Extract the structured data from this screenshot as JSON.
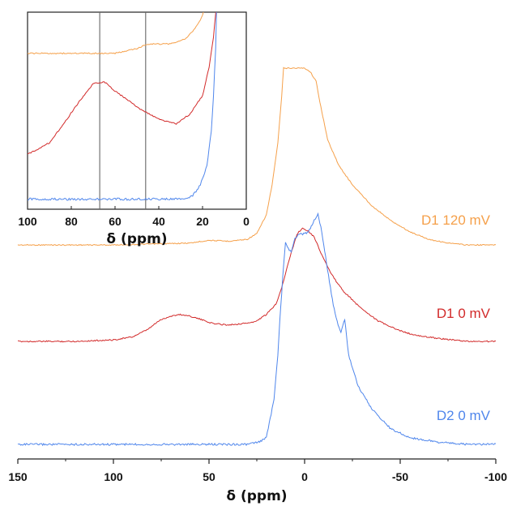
{
  "chart_data": [
    {
      "type": "line",
      "panel": "main",
      "xlabel": "δ (ppm)",
      "ylabel": "",
      "xlim": [
        150,
        -100
      ],
      "x_ticks": [
        150,
        100,
        50,
        0,
        -50,
        -100
      ],
      "x_tick_labels": [
        "150",
        "100",
        "50",
        "0",
        "-50",
        "-100"
      ],
      "y_ticks": [],
      "series": [
        {
          "name": "D1 120 mV",
          "color": "#f5a04a",
          "points": [
            [
              150,
              0.06
            ],
            [
              120,
              0.06
            ],
            [
              100,
              0.06
            ],
            [
              80,
              0.065
            ],
            [
              60,
              0.07
            ],
            [
              50,
              0.085
            ],
            [
              40,
              0.08
            ],
            [
              30,
              0.09
            ],
            [
              25,
              0.12
            ],
            [
              20,
              0.22
            ],
            [
              17,
              0.38
            ],
            [
              14,
              0.6
            ],
            [
              12,
              0.85
            ],
            [
              11,
              1.0
            ],
            [
              10,
              1.0
            ],
            [
              5,
              1.0
            ],
            [
              0,
              1.0
            ],
            [
              -3,
              0.98
            ],
            [
              -6,
              0.93
            ],
            [
              -8,
              0.82
            ],
            [
              -12,
              0.62
            ],
            [
              -18,
              0.48
            ],
            [
              -25,
              0.38
            ],
            [
              -35,
              0.27
            ],
            [
              -45,
              0.19
            ],
            [
              -55,
              0.13
            ],
            [
              -65,
              0.09
            ],
            [
              -75,
              0.07
            ],
            [
              -85,
              0.06
            ],
            [
              -100,
              0.06
            ]
          ]
        },
        {
          "name": "D1 0 mV",
          "color": "#d22a2a",
          "points": [
            [
              150,
              0.0
            ],
            [
              120,
              0.0
            ],
            [
              100,
              0.01
            ],
            [
              90,
              0.03
            ],
            [
              82,
              0.08
            ],
            [
              76,
              0.14
            ],
            [
              70,
              0.17
            ],
            [
              65,
              0.18
            ],
            [
              60,
              0.17
            ],
            [
              55,
              0.15
            ],
            [
              48,
              0.12
            ],
            [
              40,
              0.11
            ],
            [
              32,
              0.12
            ],
            [
              26,
              0.13
            ],
            [
              20,
              0.18
            ],
            [
              15,
              0.25
            ],
            [
              12,
              0.36
            ],
            [
              8,
              0.55
            ],
            [
              4,
              0.72
            ],
            [
              1,
              0.76
            ],
            [
              -2,
              0.74
            ],
            [
              -5,
              0.7
            ],
            [
              -9,
              0.58
            ],
            [
              -14,
              0.45
            ],
            [
              -20,
              0.34
            ],
            [
              -28,
              0.24
            ],
            [
              -38,
              0.14
            ],
            [
              -48,
              0.08
            ],
            [
              -58,
              0.04
            ],
            [
              -70,
              0.02
            ],
            [
              -85,
              0.0
            ],
            [
              -100,
              0.0
            ]
          ]
        },
        {
          "name": "D2 0 mV",
          "color": "#4f86ec",
          "points": [
            [
              150,
              0.0
            ],
            [
              120,
              0.0
            ],
            [
              100,
              0.0
            ],
            [
              80,
              0.0
            ],
            [
              60,
              0.0
            ],
            [
              40,
              0.0
            ],
            [
              30,
              0.0
            ],
            [
              24,
              0.01
            ],
            [
              20,
              0.03
            ],
            [
              16,
              0.2
            ],
            [
              14,
              0.4
            ],
            [
              13,
              0.55
            ],
            [
              11,
              0.8
            ],
            [
              10,
              0.9
            ],
            [
              9,
              0.88
            ],
            [
              7,
              0.86
            ],
            [
              5,
              0.92
            ],
            [
              3,
              0.94
            ],
            [
              0,
              0.94
            ],
            [
              -2,
              0.95
            ],
            [
              -5,
              1.0
            ],
            [
              -7,
              1.03
            ],
            [
              -9,
              0.95
            ],
            [
              -12,
              0.78
            ],
            [
              -15,
              0.62
            ],
            [
              -17,
              0.55
            ],
            [
              -19,
              0.5
            ],
            [
              -21,
              0.56
            ],
            [
              -23,
              0.4
            ],
            [
              -28,
              0.26
            ],
            [
              -35,
              0.16
            ],
            [
              -45,
              0.07
            ],
            [
              -55,
              0.03
            ],
            [
              -70,
              0.01
            ],
            [
              -85,
              0.0
            ],
            [
              -100,
              0.0
            ]
          ]
        }
      ],
      "annotations": [
        "D1 120 mV",
        "D1 0 mV",
        "D2 0 mV"
      ]
    },
    {
      "type": "line",
      "panel": "inset",
      "xlabel": "δ (ppm)",
      "xlim": [
        100,
        0
      ],
      "x_ticks": [
        100,
        80,
        60,
        40,
        20,
        0
      ],
      "x_tick_labels": [
        "100",
        "80",
        "60",
        "40",
        "20",
        "0"
      ],
      "vertical_lines": [
        67,
        46
      ],
      "series": [
        {
          "name": "D1 120 mV",
          "color": "#f5a04a",
          "points": [
            [
              100,
              0.78
            ],
            [
              85,
              0.78
            ],
            [
              70,
              0.78
            ],
            [
              60,
              0.78
            ],
            [
              50,
              0.8
            ],
            [
              45,
              0.82
            ],
            [
              35,
              0.82
            ],
            [
              28,
              0.84
            ],
            [
              24,
              0.88
            ],
            [
              21,
              0.92
            ],
            [
              19,
              0.97
            ],
            [
              18,
              1.0
            ]
          ]
        },
        {
          "name": "D1 0 mV",
          "color": "#d22a2a",
          "points": [
            [
              100,
              0.35
            ],
            [
              90,
              0.4
            ],
            [
              82,
              0.5
            ],
            [
              76,
              0.58
            ],
            [
              70,
              0.65
            ],
            [
              65,
              0.66
            ],
            [
              60,
              0.62
            ],
            [
              54,
              0.58
            ],
            [
              48,
              0.54
            ],
            [
              40,
              0.5
            ],
            [
              32,
              0.48
            ],
            [
              26,
              0.52
            ],
            [
              20,
              0.6
            ],
            [
              17,
              0.72
            ],
            [
              15,
              0.85
            ],
            [
              14,
              0.95
            ],
            [
              13.5,
              1.0
            ]
          ]
        },
        {
          "name": "D2 0 mV",
          "color": "#4f86ec",
          "points": [
            [
              100,
              0.16
            ],
            [
              80,
              0.16
            ],
            [
              60,
              0.16
            ],
            [
              40,
              0.16
            ],
            [
              30,
              0.16
            ],
            [
              25,
              0.17
            ],
            [
              21,
              0.22
            ],
            [
              18,
              0.3
            ],
            [
              16,
              0.45
            ],
            [
              15,
              0.6
            ],
            [
              14,
              0.8
            ],
            [
              13.5,
              1.0
            ]
          ]
        }
      ]
    }
  ]
}
